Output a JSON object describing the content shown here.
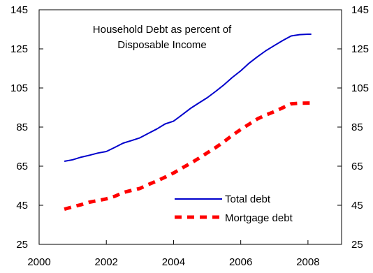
{
  "chart_data": {
    "type": "line",
    "title": "",
    "annotation": [
      "Household Debt as percent of",
      "Disposable Income"
    ],
    "xlabel": "",
    "ylabel": "",
    "xlim": [
      2000,
      2009
    ],
    "ylim": [
      25,
      145
    ],
    "x_ticks": [
      2000,
      2002,
      2004,
      2006,
      2008
    ],
    "x_tick_labels": [
      "2000",
      "2002",
      "2004",
      "2006",
      "2008"
    ],
    "y_ticks": [
      25,
      45,
      65,
      85,
      105,
      125,
      145
    ],
    "y_tick_labels": [
      "25",
      "45",
      "65",
      "85",
      "105",
      "125",
      "145"
    ],
    "secondary_y_axis": true,
    "grid": false,
    "legend_position": "bottom-right",
    "series": [
      {
        "name": "Total debt",
        "color": "#0000CC",
        "line_style": "solid",
        "x": [
          2000.75,
          2001.0,
          2001.25,
          2001.5,
          2001.75,
          2002.0,
          2002.25,
          2002.5,
          2002.75,
          2003.0,
          2003.25,
          2003.5,
          2003.75,
          2004.0,
          2004.25,
          2004.5,
          2004.75,
          2005.0,
          2005.25,
          2005.5,
          2005.75,
          2006.0,
          2006.25,
          2006.5,
          2006.75,
          2007.0,
          2007.25,
          2007.5,
          2007.75,
          2008.0,
          2008.1
        ],
        "values": [
          67.5,
          68.3,
          69.6,
          70.6,
          71.7,
          72.5,
          74.6,
          76.8,
          78.1,
          79.5,
          81.8,
          84.0,
          86.6,
          88.0,
          91.2,
          94.5,
          97.3,
          100.0,
          103.2,
          106.6,
          110.4,
          113.8,
          117.7,
          121.0,
          124.1,
          126.7,
          129.3,
          131.6,
          132.3,
          132.5,
          132.5
        ]
      },
      {
        "name": "Mortgage debt",
        "color": "#FF0000",
        "line_style": "dashed",
        "x": [
          2000.75,
          2001.0,
          2001.25,
          2001.5,
          2001.75,
          2002.0,
          2002.25,
          2002.5,
          2002.75,
          2003.0,
          2003.25,
          2003.5,
          2003.75,
          2004.0,
          2004.25,
          2004.5,
          2004.75,
          2005.0,
          2005.25,
          2005.5,
          2005.75,
          2006.0,
          2006.25,
          2006.5,
          2006.75,
          2007.0,
          2007.25,
          2007.5,
          2007.75,
          2008.0,
          2008.1
        ],
        "values": [
          43.0,
          44.2,
          45.3,
          46.6,
          47.4,
          48.3,
          49.6,
          51.5,
          52.6,
          53.6,
          55.6,
          57.4,
          59.4,
          61.5,
          64.0,
          66.4,
          69.0,
          71.8,
          74.5,
          77.5,
          80.8,
          83.8,
          86.5,
          89.2,
          91.2,
          92.9,
          94.9,
          96.9,
          97.2,
          97.3,
          97.3
        ]
      }
    ]
  }
}
